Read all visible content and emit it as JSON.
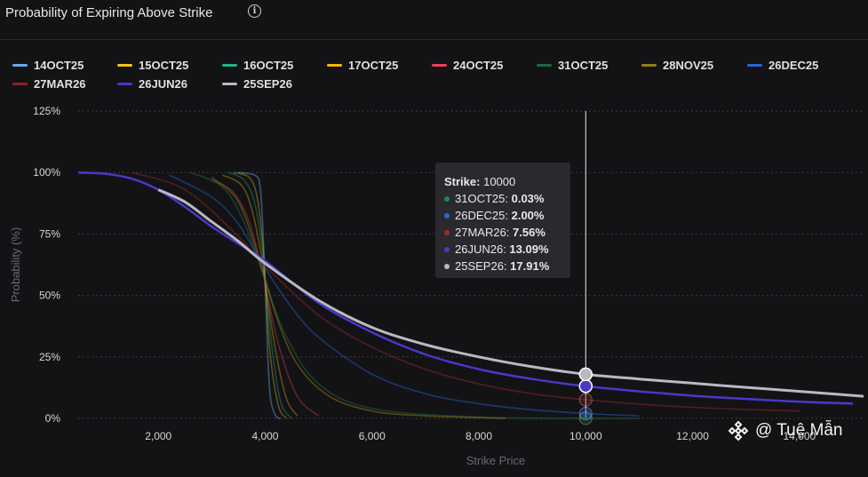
{
  "header": {
    "title": "Probability of Expiring Above Strike",
    "info_icon": "info-circle-icon"
  },
  "legend": [
    {
      "name": "14OCT25",
      "color": "#6aa8e8"
    },
    {
      "name": "15OCT25",
      "color": "#f0c419"
    },
    {
      "name": "16OCT25",
      "color": "#1db888"
    },
    {
      "name": "17OCT25",
      "color": "#f5b70a"
    },
    {
      "name": "24OCT25",
      "color": "#f03e5e"
    },
    {
      "name": "31OCT25",
      "color": "#1d6b3e"
    },
    {
      "name": "28NOV25",
      "color": "#9a7a14"
    },
    {
      "name": "26DEC25",
      "color": "#2a64d8"
    },
    {
      "name": "27MAR26",
      "color": "#8a2424"
    },
    {
      "name": "26JUN26",
      "color": "#4a38c8"
    },
    {
      "name": "25SEP26",
      "color": "#b9b9c2"
    }
  ],
  "tooltip": {
    "strike_label": "Strike:",
    "strike_value": "10000",
    "rows": [
      {
        "label": "31OCT25:",
        "value": "0.03%",
        "color": "#1d8a4e"
      },
      {
        "label": "26DEC25:",
        "value": "2.00%",
        "color": "#2a64d8"
      },
      {
        "label": "27MAR26:",
        "value": "7.56%",
        "color": "#a02a2a"
      },
      {
        "label": "26JUN26:",
        "value": "13.09%",
        "color": "#4a38c8"
      },
      {
        "label": "25SEP26:",
        "value": "17.91%",
        "color": "#b9b9c2"
      }
    ]
  },
  "watermark": {
    "text": "@ Tuệ Mẫn",
    "logo_icon": "diamond-logo-icon"
  },
  "chart_data": {
    "type": "line",
    "title": "Probability of Expiring Above Strike",
    "xlabel": "Strike Price",
    "ylabel": "Probability (%)",
    "xlim": [
      500,
      15200
    ],
    "ylim": [
      0,
      125
    ],
    "x_ticks": [
      2000,
      4000,
      6000,
      8000,
      10000,
      12000,
      14000
    ],
    "x_tick_labels": [
      "2,000",
      "4,000",
      "6,000",
      "8,000",
      "10,000",
      "12,000",
      "14,000"
    ],
    "y_ticks": [
      0,
      25,
      50,
      75,
      100,
      125
    ],
    "y_tick_labels": [
      "0%",
      "25%",
      "50%",
      "75%",
      "100%",
      "125%"
    ],
    "grid": "horizontal",
    "legend_position": "top",
    "hover_x": 10000,
    "series": [
      {
        "name": "14OCT25",
        "color": "#6aa8e8",
        "opacity": 0.45,
        "x": [
          3500,
          3800,
          3900,
          3950,
          4000,
          4050,
          4100,
          4200,
          4300
        ],
        "y": [
          100,
          99,
          95,
          80,
          55,
          25,
          8,
          1,
          0
        ]
      },
      {
        "name": "15OCT25",
        "color": "#f0c419",
        "opacity": 0.35,
        "x": [
          3400,
          3700,
          3850,
          3950,
          4000,
          4100,
          4250,
          4400
        ],
        "y": [
          100,
          98,
          90,
          72,
          55,
          25,
          5,
          0
        ]
      },
      {
        "name": "16OCT25",
        "color": "#1db888",
        "opacity": 0.35,
        "x": [
          3300,
          3600,
          3800,
          3950,
          4000,
          4150,
          4300,
          4500
        ],
        "y": [
          100,
          97,
          88,
          68,
          55,
          25,
          6,
          0
        ]
      },
      {
        "name": "17OCT25",
        "color": "#f5b70a",
        "opacity": 0.35,
        "x": [
          3200,
          3550,
          3750,
          3950,
          4000,
          4200,
          4400,
          4600
        ],
        "y": [
          99,
          95,
          85,
          64,
          55,
          27,
          8,
          1
        ]
      },
      {
        "name": "24OCT25",
        "color": "#f03e5e",
        "opacity": 0.35,
        "x": [
          3000,
          3400,
          3700,
          3950,
          4000,
          4250,
          4600,
          5000
        ],
        "y": [
          97,
          92,
          80,
          60,
          55,
          30,
          9,
          1
        ]
      },
      {
        "name": "31OCT25",
        "color": "#1d6b3e",
        "opacity": 0.5,
        "x": [
          2600,
          3200,
          3600,
          4000,
          4400,
          5000,
          6000,
          8000,
          10000,
          11000
        ],
        "y": [
          100,
          94,
          80,
          56,
          33,
          14,
          4,
          0.5,
          0.03,
          0
        ]
      },
      {
        "name": "28NOV25",
        "color": "#9a7a14",
        "opacity": 0.5,
        "x": [
          3000,
          3500,
          3900,
          4200,
          4600,
          5200,
          6000,
          7000,
          8500
        ],
        "y": [
          98,
          88,
          64,
          42,
          22,
          9,
          3,
          1,
          0
        ]
      },
      {
        "name": "26DEC25",
        "color": "#2a64d8",
        "opacity": 0.45,
        "x": [
          2200,
          3000,
          3500,
          4000,
          4500,
          5000,
          6000,
          7000,
          8000,
          9000,
          10000,
          11000
        ],
        "y": [
          99,
          90,
          79,
          61,
          45,
          33,
          18,
          10,
          6,
          3.5,
          2,
          1
        ]
      },
      {
        "name": "27MAR26",
        "color": "#8a2424",
        "opacity": 0.55,
        "x": [
          1500,
          2500,
          3500,
          4000,
          5000,
          6000,
          7000,
          8000,
          9000,
          10000,
          11000,
          12000,
          13000,
          14000
        ],
        "y": [
          100,
          93,
          74,
          62,
          42,
          29,
          20,
          14,
          10,
          7.56,
          5.8,
          4.5,
          3.6,
          3
        ]
      },
      {
        "name": "26JUN26",
        "color": "#4a38c8",
        "opacity": 1,
        "x": [
          500,
          1000,
          1500,
          2000,
          2500,
          3000,
          3500,
          4000,
          5000,
          6000,
          7000,
          8000,
          9000,
          10000,
          11000,
          12000,
          13000,
          14000,
          15000
        ],
        "y": [
          100,
          99.5,
          97.5,
          93,
          86,
          78,
          71,
          64,
          47,
          35,
          26,
          20,
          16,
          13.09,
          11,
          9.2,
          7.9,
          6.8,
          6
        ]
      },
      {
        "name": "25SEP26",
        "color": "#b9b9c2",
        "opacity": 1,
        "x": [
          2000,
          2500,
          3000,
          3500,
          4000,
          5000,
          6000,
          7000,
          8000,
          9000,
          10000,
          11000,
          12000,
          13000,
          14000,
          15200
        ],
        "y": [
          93,
          88,
          80,
          72,
          63,
          48,
          37,
          30,
          25,
          21,
          17.91,
          16,
          14.3,
          12.6,
          11,
          9
        ]
      }
    ]
  }
}
